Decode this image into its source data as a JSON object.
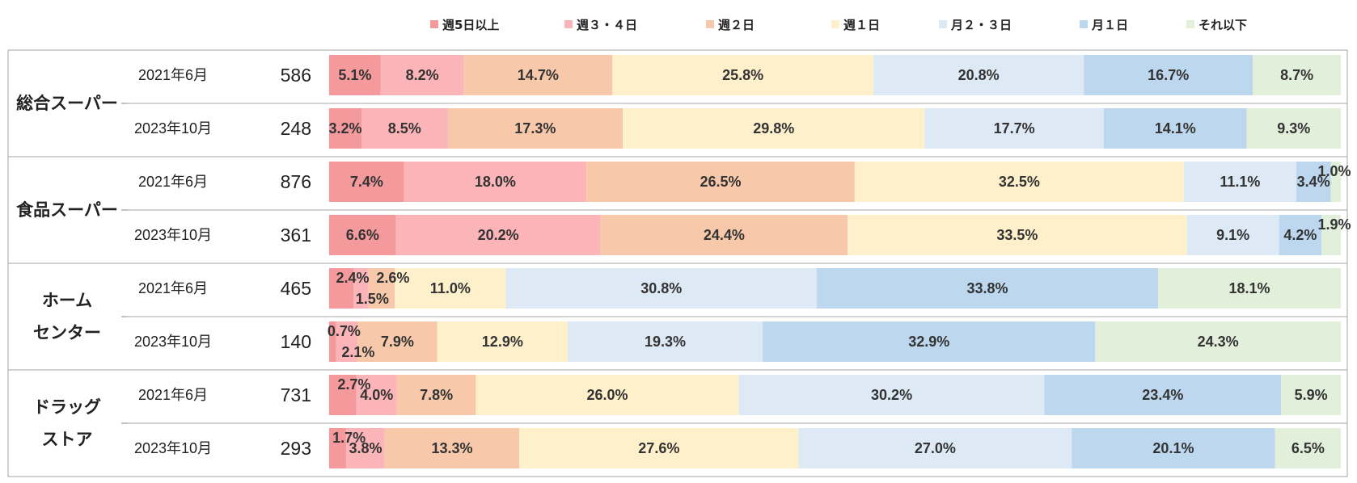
{
  "chart_data": {
    "type": "bar",
    "orientation": "horizontal",
    "stacked": "percent",
    "legend": {
      "position": "top",
      "entries": [
        {
          "name": "週5日以上",
          "color": "#f4999c"
        },
        {
          "name": "週３・４日",
          "color": "#fbb4b7"
        },
        {
          "name": "週２日",
          "color": "#f7c9aa"
        },
        {
          "name": "週１日",
          "color": "#fff0cc"
        },
        {
          "name": "月２・３日",
          "color": "#dde9f5"
        },
        {
          "name": "月１日",
          "color": "#bcd7ee"
        },
        {
          "name": "それ以下",
          "color": "#e2efda"
        }
      ]
    },
    "groups": [
      {
        "category": [
          "総合スーパー"
        ],
        "rows": [
          {
            "period": "2021年6月",
            "n": "586",
            "values": [
              5.1,
              8.2,
              14.7,
              25.8,
              20.8,
              16.7,
              8.7
            ],
            "labels": [
              "5.1%",
              "8.2%",
              "14.7%",
              "25.8%",
              "20.8%",
              "16.7%",
              "8.7%"
            ]
          },
          {
            "period": "2023年10月",
            "n": "248",
            "values": [
              3.2,
              8.5,
              17.3,
              29.8,
              17.7,
              14.1,
              9.3
            ],
            "labels": [
              "3.2%",
              "8.5%",
              "17.3%",
              "29.8%",
              "17.7%",
              "14.1%",
              "9.3%"
            ]
          }
        ]
      },
      {
        "category": [
          "食品スーパー"
        ],
        "rows": [
          {
            "period": "2021年6月",
            "n": "876",
            "values": [
              7.4,
              18.0,
              26.5,
              32.5,
              11.1,
              3.4,
              1.0
            ],
            "labels": [
              "7.4%",
              "18.0%",
              "26.5%",
              "32.5%",
              "11.1%",
              "3.4%",
              "1.0%"
            ]
          },
          {
            "period": "2023年10月",
            "n": "361",
            "values": [
              6.6,
              20.2,
              24.4,
              33.5,
              9.1,
              4.2,
              1.9
            ],
            "labels": [
              "6.6%",
              "20.2%",
              "24.4%",
              "33.5%",
              "9.1%",
              "4.2%",
              "1.9%"
            ]
          }
        ]
      },
      {
        "category": [
          "ホーム",
          "センター"
        ],
        "rows": [
          {
            "period": "2021年6月",
            "n": "465",
            "values": [
              2.4,
              1.5,
              2.6,
              11.0,
              30.8,
              33.8,
              18.1
            ],
            "labels": [
              "2.4%",
              "1.5%",
              "2.6%",
              "11.0%",
              "30.8%",
              "33.8%",
              "18.1%"
            ]
          },
          {
            "period": "2023年10月",
            "n": "140",
            "values": [
              0.7,
              2.1,
              7.9,
              12.9,
              19.3,
              32.9,
              24.3
            ],
            "labels": [
              "0.7%",
              "2.1%",
              "7.9%",
              "12.9%",
              "19.3%",
              "32.9%",
              "24.3%"
            ]
          }
        ]
      },
      {
        "category": [
          "ドラッグ",
          "ストア"
        ],
        "rows": [
          {
            "period": "2021年6月",
            "n": "731",
            "values": [
              2.7,
              4.0,
              7.8,
              26.0,
              30.2,
              23.4,
              5.9
            ],
            "labels": [
              "2.7%",
              "4.0%",
              "7.8%",
              "26.0%",
              "30.2%",
              "23.4%",
              "5.9%"
            ]
          },
          {
            "period": "2023年10月",
            "n": "293",
            "values": [
              1.7,
              3.8,
              13.3,
              27.6,
              27.0,
              20.1,
              6.5
            ],
            "labels": [
              "1.7%",
              "3.8%",
              "13.3%",
              "27.6%",
              "27.0%",
              "20.1%",
              "6.5%"
            ]
          }
        ]
      }
    ],
    "xlim": [
      0,
      100
    ],
    "grid": false
  }
}
